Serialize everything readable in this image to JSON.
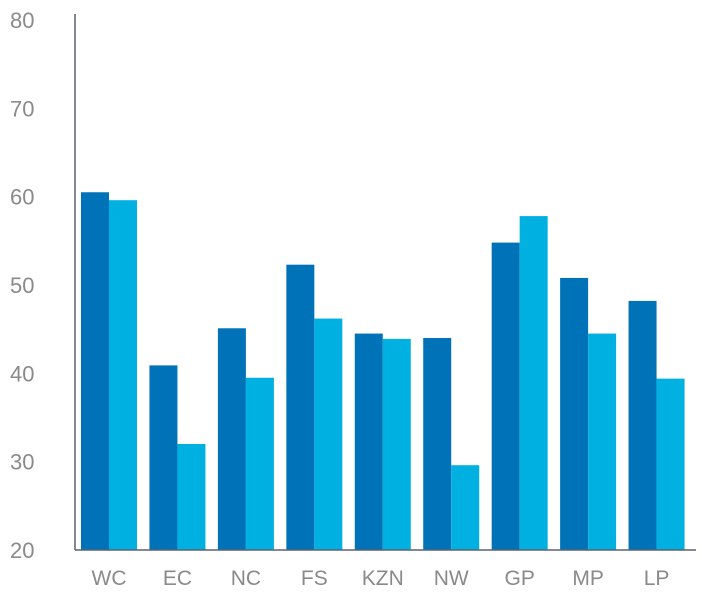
{
  "chart_data": {
    "type": "bar",
    "title": "",
    "xlabel": "",
    "ylabel": "",
    "ylim": [
      20,
      80
    ],
    "yticks": [
      20,
      30,
      40,
      50,
      60,
      70,
      80
    ],
    "categories": [
      "WC",
      "EC",
      "NC",
      "FS",
      "KZN",
      "NW",
      "GP",
      "MP",
      "LP"
    ],
    "series": [
      {
        "values": [
          60.5,
          40.9,
          45.1,
          52.3,
          44.5,
          44.0,
          54.8,
          50.8,
          48.2
        ]
      },
      {
        "values": [
          59.6,
          32.0,
          39.5,
          46.2,
          43.9,
          29.6,
          57.8,
          44.5,
          39.4
        ]
      }
    ],
    "colors": [
      "#0072b8",
      "#00b0e0"
    ],
    "grid": false,
    "legend": "none"
  }
}
